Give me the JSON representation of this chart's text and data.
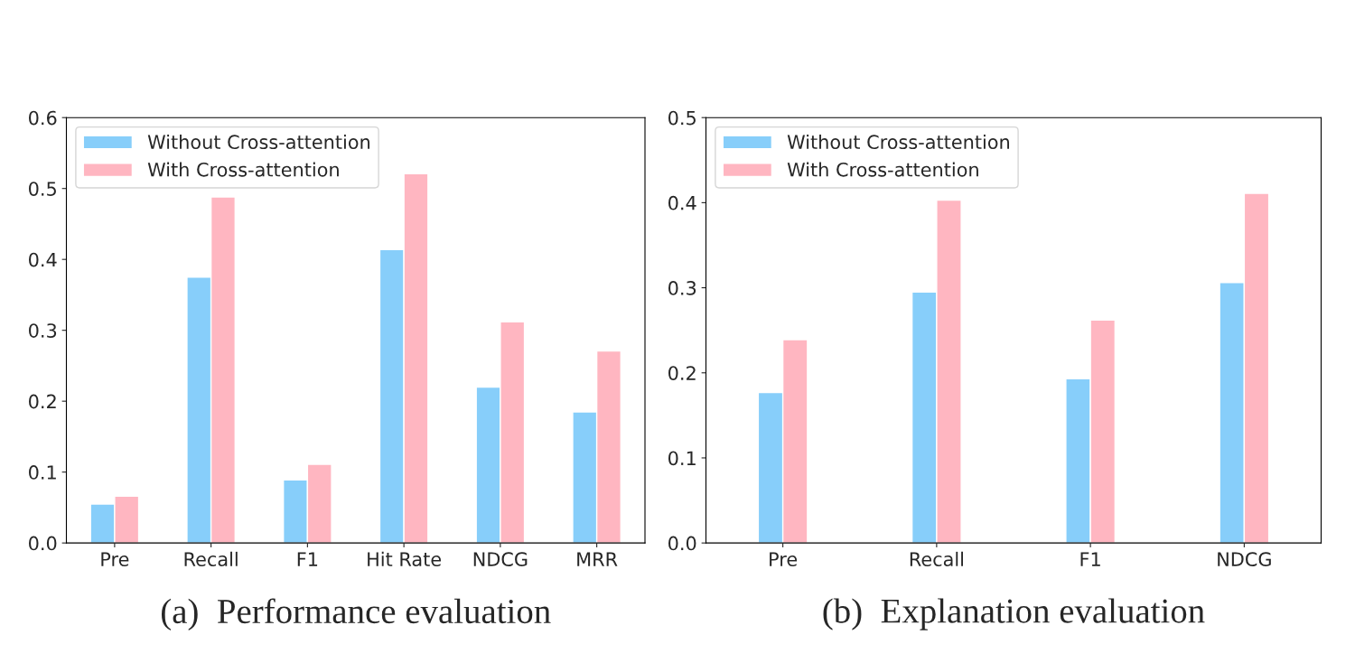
{
  "chart_data": [
    {
      "type": "bar",
      "categories": [
        "Pre",
        "Recall",
        "F1",
        "Hit Rate",
        "NDCG",
        "MRR"
      ],
      "series": [
        {
          "name": "Without Cross-attention",
          "color": "#87cefa",
          "values": [
            0.055,
            0.375,
            0.089,
            0.414,
            0.22,
            0.185
          ]
        },
        {
          "name": "With Cross-attention",
          "color": "#ffb6c1",
          "values": [
            0.066,
            0.488,
            0.111,
            0.521,
            0.312,
            0.271
          ]
        }
      ],
      "ylim": [
        0,
        0.6
      ],
      "yticks": [
        {
          "value": 0,
          "label": "0.0"
        },
        0.1,
        0.2,
        0.3,
        0.4,
        0.5,
        0.6
      ],
      "legend": "top left",
      "grid": false,
      "annotations": [
        "(a)  Performance evaluation"
      ]
    },
    {
      "type": "bar",
      "categories": [
        "Pre",
        "Recall",
        "F1",
        "NDCG"
      ],
      "series": [
        {
          "name": "Without Cross-attention",
          "color": "#87cefa",
          "values": [
            0.177,
            0.295,
            0.193,
            0.306
          ]
        },
        {
          "name": "With Cross-attention",
          "color": "#ffb6c1",
          "values": [
            0.239,
            0.403,
            0.262,
            0.411
          ]
        }
      ],
      "ylim": [
        0,
        0.5
      ],
      "yticks": [
        {
          "value": 0,
          "label": "0.0"
        },
        0.1,
        0.2,
        0.3,
        0.4,
        0.5
      ],
      "legend": "top left",
      "grid": false,
      "annotations": [
        "(b)  Explanation evaluation"
      ]
    }
  ]
}
